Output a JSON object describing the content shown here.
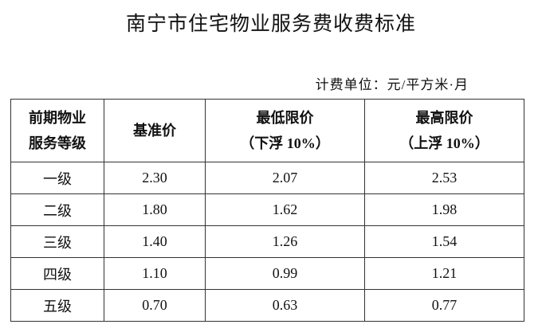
{
  "header": {
    "title": "南宁市住宅物业服务费收费标准",
    "unit": "计费单位：元/平方米·月"
  },
  "table": {
    "columns": [
      [
        "前期物业",
        "服务等级"
      ],
      [
        "基准价"
      ],
      [
        "最低限价",
        "（下浮 10%）"
      ],
      [
        "最高限价",
        "（上浮 10%）"
      ]
    ],
    "rows": [
      [
        "一级",
        "2.30",
        "2.07",
        "2.53"
      ],
      [
        "二级",
        "1.80",
        "1.62",
        "1.98"
      ],
      [
        "三级",
        "1.40",
        "1.26",
        "1.54"
      ],
      [
        "四级",
        "1.10",
        "0.99",
        "1.21"
      ],
      [
        "五级",
        "0.70",
        "0.63",
        "0.77"
      ]
    ]
  }
}
